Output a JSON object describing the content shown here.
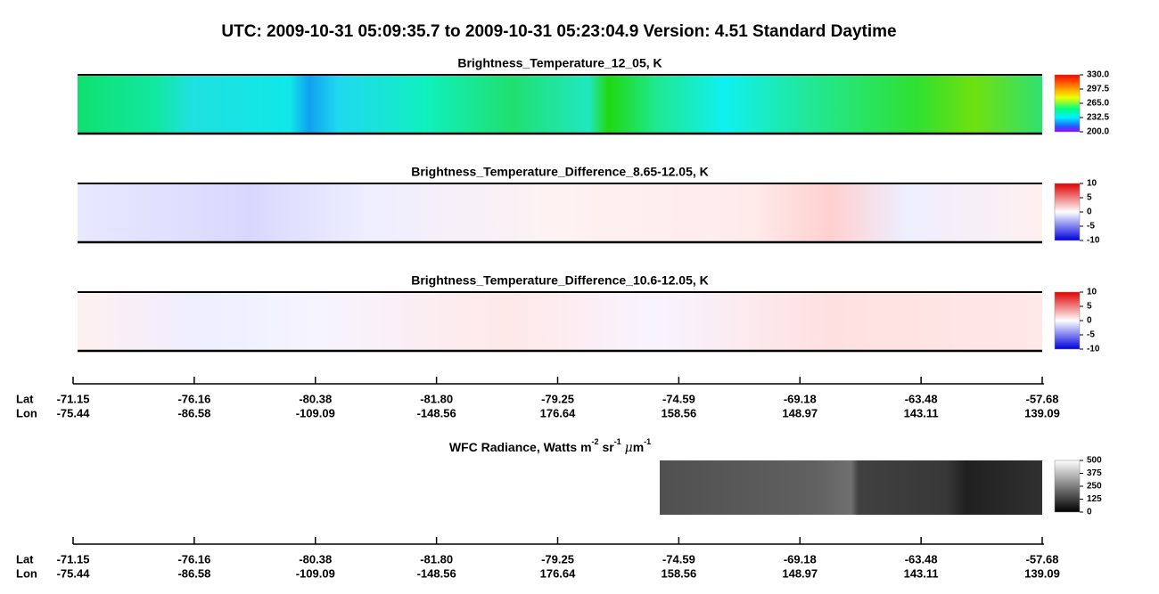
{
  "header": {
    "title": "UTC:  2009-10-31   05:09:35.7  to  2009-10-31   05:23:04.9    Version: 4.51  Standard Daytime"
  },
  "panels": [
    {
      "title": "Brightness_Temperature_12_05, K",
      "colorbar": [
        "330.0",
        "297.5",
        "265.0",
        "232.5",
        "200.0"
      ]
    },
    {
      "title": "Brightness_Temperature_Difference_8.65-12.05, K",
      "colorbar": [
        "10",
        "5",
        "0",
        "-5",
        "-10"
      ]
    },
    {
      "title": "Brightness_Temperature_Difference_10.6-12.05, K",
      "colorbar": [
        "10",
        "5",
        "0",
        "-5",
        "-10"
      ]
    }
  ],
  "wfc": {
    "title": [
      "WFC Radiance, Watts m",
      "-2",
      " sr",
      "-1",
      " ",
      "μ",
      "m",
      "-1"
    ],
    "colorbar": [
      "500",
      "375",
      "250",
      "125",
      "0"
    ]
  },
  "axes": [
    {
      "lat_label": "Lat",
      "lon_label": "Lon",
      "lat": [
        "-71.15",
        "-76.16",
        "-80.38",
        "-81.80",
        "-79.25",
        "-74.59",
        "-69.18",
        "-63.48",
        "-57.68"
      ],
      "lon": [
        "-75.44",
        "-86.58",
        "-109.09",
        "-148.56",
        "176.64",
        "158.56",
        "148.97",
        "143.11",
        "139.09"
      ]
    },
    {
      "lat_label": "Lat",
      "lon_label": "Lon",
      "lat": [
        "-71.15",
        "-76.16",
        "-80.38",
        "-81.80",
        "-79.25",
        "-74.59",
        "-69.18",
        "-63.48",
        "-57.68"
      ],
      "lon": [
        "-75.44",
        "-86.58",
        "-109.09",
        "-148.56",
        "176.64",
        "158.56",
        "148.97",
        "143.11",
        "139.09"
      ]
    }
  ]
}
